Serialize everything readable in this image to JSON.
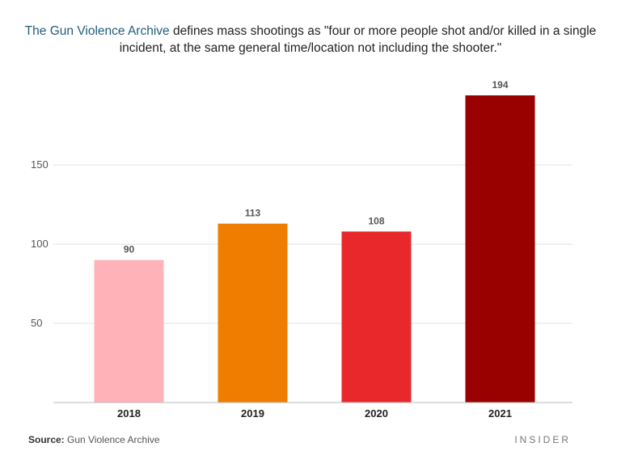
{
  "subtitle": {
    "highlight": "The Gun Violence Archive",
    "rest": " defines mass shootings as \"four or more people shot and/or killed in a single incident, at the same general time/location not including the shooter.\""
  },
  "footer": {
    "source_label": "Source:",
    "source_text": " Gun Violence Archive",
    "brand": "INSIDER"
  },
  "colors": {
    "highlight": "#1f5d7a",
    "bars": [
      "#ffb3b8",
      "#f07d00",
      "#e8282b",
      "#990000"
    ]
  },
  "chart_data": {
    "type": "bar",
    "title": "",
    "xlabel": "",
    "ylabel": "",
    "categories": [
      "2018",
      "2019",
      "2020",
      "2021"
    ],
    "values": [
      90,
      113,
      108,
      194
    ],
    "yticks": [
      50,
      100,
      150
    ],
    "ylim": [
      0,
      194
    ],
    "grid": true
  }
}
